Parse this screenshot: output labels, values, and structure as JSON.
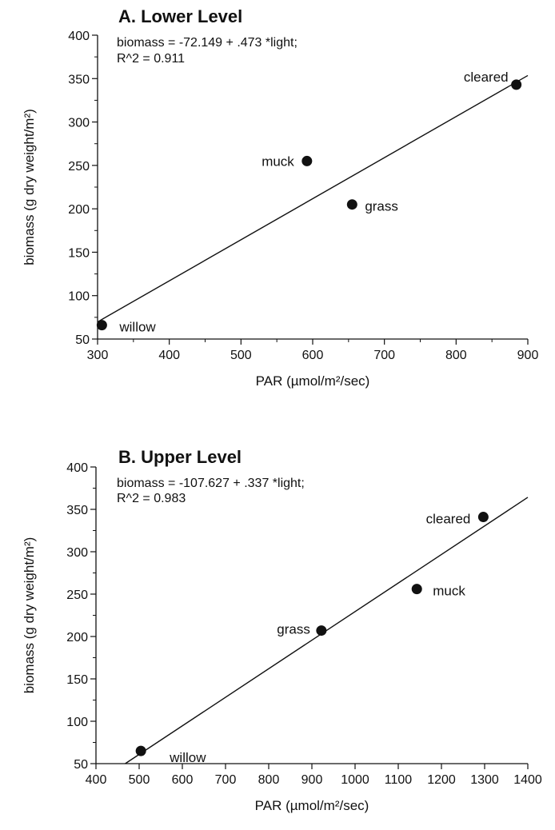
{
  "chart_data": [
    {
      "type": "scatter",
      "title": "A. Lower Level",
      "equation": "biomass = -72.149 + .473 *light;",
      "r2": "R^2 = 0.911",
      "xlabel": "PAR (µmol/m²/sec)",
      "ylabel": "biomass (g dry weight/m²)",
      "xlim": [
        300,
        900
      ],
      "ylim": [
        50,
        400
      ],
      "xticks": [
        300,
        400,
        500,
        600,
        700,
        800,
        900
      ],
      "yticks": [
        50,
        100,
        150,
        200,
        250,
        300,
        350,
        400
      ],
      "points": [
        {
          "label": "willow",
          "x": 306,
          "y": 66
        },
        {
          "label": "muck",
          "x": 592,
          "y": 255
        },
        {
          "label": "grass",
          "x": 655,
          "y": 205
        },
        {
          "label": "cleared",
          "x": 884,
          "y": 343
        }
      ],
      "fit": {
        "intercept": -72.149,
        "slope": 0.473
      }
    },
    {
      "type": "scatter",
      "title": "B. Upper Level",
      "equation": "biomass = -107.627 + .337 *light;",
      "r2": "R^2 = 0.983",
      "xlabel": "PAR (µmol/m²/sec)",
      "ylabel": "biomass (g dry weight/m²)",
      "xlim": [
        400,
        1400
      ],
      "ylim": [
        50,
        400
      ],
      "xticks": [
        400,
        500,
        600,
        700,
        800,
        900,
        1000,
        1100,
        1200,
        1300,
        1400
      ],
      "yticks": [
        50,
        100,
        150,
        200,
        250,
        300,
        350,
        400
      ],
      "points": [
        {
          "label": "willow",
          "x": 504,
          "y": 65
        },
        {
          "label": "grass",
          "x": 922,
          "y": 207
        },
        {
          "label": "muck",
          "x": 1143,
          "y": 256
        },
        {
          "label": "cleared",
          "x": 1297,
          "y": 341
        }
      ],
      "fit": {
        "intercept": -107.627,
        "slope": 0.337
      }
    }
  ]
}
